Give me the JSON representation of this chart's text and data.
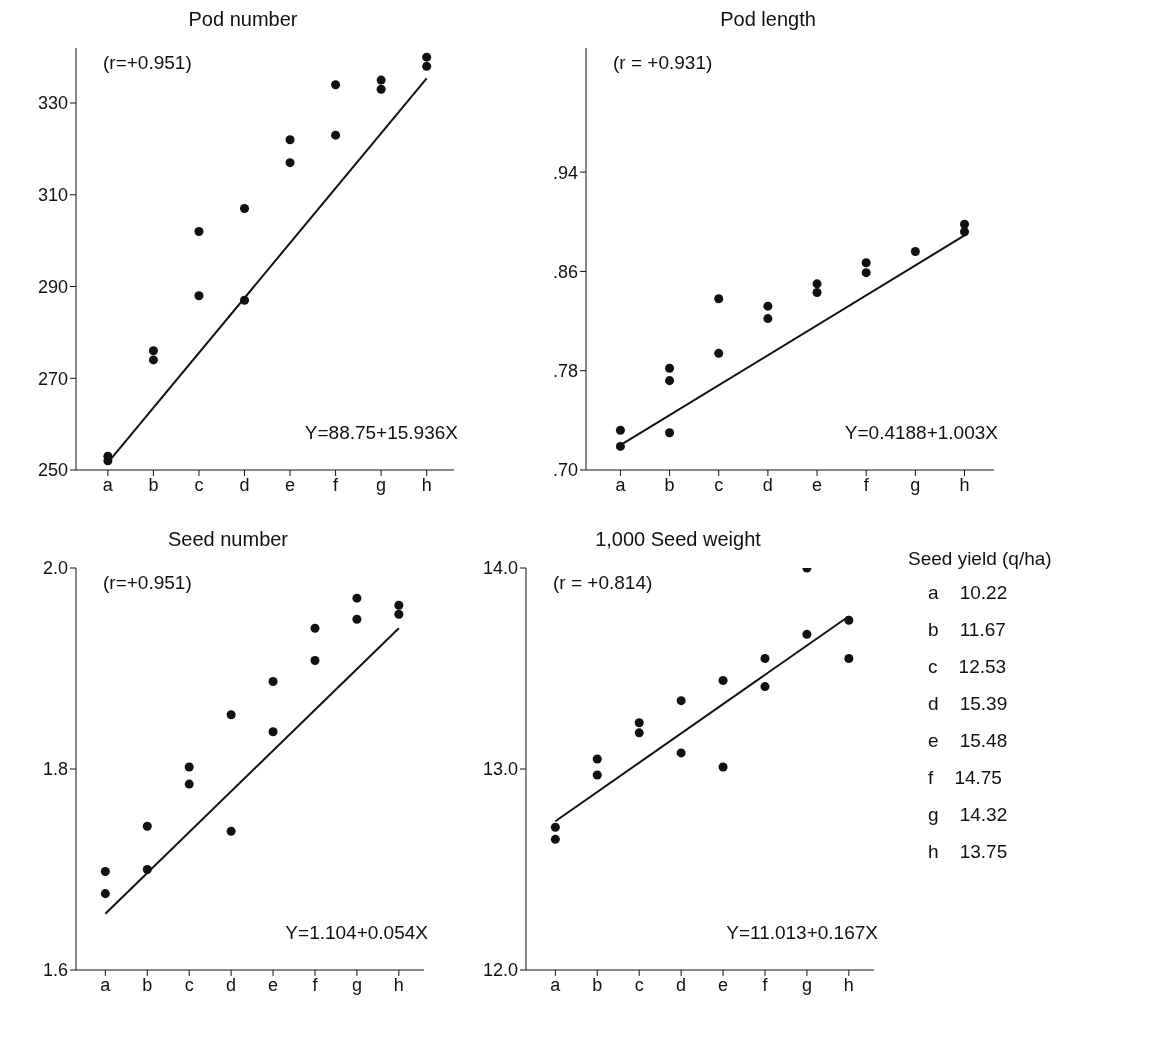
{
  "chart_data": [
    {
      "type": "scatter",
      "title": "Pod number",
      "annotations": [
        "(r=+0.951)",
        "Y=88.75+15.936X"
      ],
      "categories": [
        "a",
        "b",
        "c",
        "d",
        "e",
        "f",
        "g",
        "h"
      ],
      "ylim": [
        250,
        342
      ],
      "yticks": [
        250,
        270,
        290,
        310,
        330
      ],
      "series": [
        {
          "type": "scatter",
          "color": "#111111",
          "marker": "circle",
          "x": [
            "a",
            "a",
            "b",
            "b",
            "c",
            "c",
            "d",
            "d",
            "e",
            "e",
            "f",
            "f",
            "g",
            "g",
            "h",
            "h"
          ],
          "values": [
            253,
            252,
            276,
            274,
            302,
            288,
            307,
            287,
            322,
            317,
            334,
            323,
            335,
            333,
            338,
            340
          ]
        },
        {
          "type": "line",
          "color": "#111111",
          "line_style": "solid",
          "x": [
            "a",
            "h"
          ],
          "values": [
            251.6,
            335.4
          ]
        }
      ]
    },
    {
      "type": "scatter",
      "title": "Pod length",
      "annotations": [
        "(r = +0.931)",
        "Y=0.4188+1.003X"
      ],
      "categories": [
        "a",
        "b",
        "c",
        "d",
        "e",
        "f",
        "g",
        "h"
      ],
      "ylim": [
        0.7,
        1.04
      ],
      "yticks": [
        {
          "value": 0.7,
          "label": ".70"
        },
        {
          "value": 0.78,
          "label": ".78"
        },
        {
          "value": 0.86,
          "label": ".86"
        },
        {
          "value": 0.94,
          "label": ".94"
        }
      ],
      "series": [
        {
          "type": "scatter",
          "color": "#111111",
          "marker": "circle",
          "x": [
            "a",
            "a",
            "b",
            "b",
            "b",
            "c",
            "c",
            "d",
            "d",
            "e",
            "e",
            "f",
            "f",
            "g",
            "h",
            "h"
          ],
          "values": [
            0.732,
            0.719,
            0.782,
            0.73,
            0.772,
            0.838,
            0.794,
            0.832,
            0.822,
            0.85,
            0.843,
            0.867,
            0.859,
            0.876,
            0.892,
            0.898
          ]
        },
        {
          "type": "line",
          "color": "#111111",
          "line_style": "solid",
          "x": [
            "a",
            "h"
          ],
          "values": [
            0.72,
            0.889
          ]
        }
      ]
    },
    {
      "type": "scatter",
      "title": "Seed number",
      "annotations": [
        "(r=+0.951)",
        "Y=1.104+0.054X"
      ],
      "categories": [
        "a",
        "b",
        "c",
        "d",
        "e",
        "f",
        "g",
        "h"
      ],
      "ylim": [
        1.6,
        2.0
      ],
      "yticks": [
        {
          "value": 1.6,
          "label": "1.6"
        },
        {
          "value": 1.8,
          "label": "1.8"
        },
        {
          "value": 2.0,
          "label": "2.0"
        }
      ],
      "series": [
        {
          "type": "scatter",
          "color": "#111111",
          "marker": "circle",
          "x": [
            "a",
            "a",
            "b",
            "b",
            "c",
            "c",
            "d",
            "d",
            "e",
            "e",
            "f",
            "f",
            "g",
            "g",
            "h",
            "h"
          ],
          "values": [
            1.698,
            1.676,
            1.7,
            1.743,
            1.802,
            1.785,
            1.738,
            1.854,
            1.837,
            1.887,
            1.94,
            1.908,
            1.97,
            1.949,
            1.963,
            1.954
          ]
        },
        {
          "type": "line",
          "color": "#111111",
          "line_style": "solid",
          "x": [
            "a",
            "h"
          ],
          "values": [
            1.656,
            1.94
          ]
        }
      ]
    },
    {
      "type": "scatter",
      "title": "1,000 Seed weight",
      "annotations": [
        "(r = +0.814)",
        "Y=11.013+0.167X"
      ],
      "categories": [
        "a",
        "b",
        "c",
        "d",
        "e",
        "f",
        "g",
        "h"
      ],
      "ylim": [
        12.0,
        14.0
      ],
      "yticks": [
        {
          "value": 12,
          "label": "12.0"
        },
        {
          "value": 13,
          "label": "13.0"
        },
        {
          "value": 14,
          "label": "14.0"
        }
      ],
      "series": [
        {
          "type": "scatter",
          "color": "#111111",
          "marker": "circle",
          "x": [
            "a",
            "a",
            "b",
            "b",
            "c",
            "c",
            "d",
            "d",
            "e",
            "e",
            "f",
            "f",
            "g",
            "g",
            "h",
            "h"
          ],
          "values": [
            12.65,
            12.71,
            13.05,
            12.97,
            13.23,
            13.18,
            13.08,
            13.34,
            13.44,
            13.01,
            13.55,
            13.41,
            14.0,
            13.67,
            13.55,
            13.74
          ]
        },
        {
          "type": "line",
          "color": "#111111",
          "line_style": "solid",
          "x": [
            "a",
            "h"
          ],
          "values": [
            12.74,
            13.76
          ]
        }
      ]
    },
    {
      "type": "other",
      "title": "Seed yield (q/ha)",
      "annotations": [
        "a    10.22",
        "b    11.67",
        "c    12.53",
        "d    15.39",
        "e    15.48",
        "f    14.75",
        "g    14.32",
        "h    13.75"
      ]
    }
  ]
}
